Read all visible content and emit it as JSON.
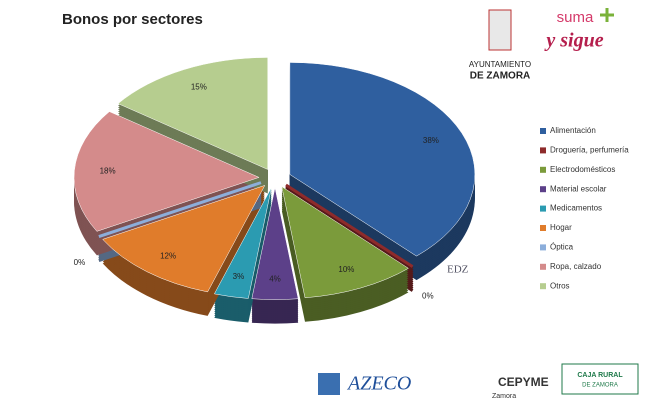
{
  "chart_data": {
    "type": "pie",
    "title": "Bonos por sectores",
    "categories": [
      "Alimentación",
      "Droguería, perfumería",
      "Electrodomésticos",
      "Material escolar",
      "Medicamentos",
      "Hogar",
      "Óptica",
      "Ropa, calzado",
      "Otros"
    ],
    "values": [
      38,
      0,
      10,
      4,
      3,
      12,
      0,
      18,
      15
    ],
    "value_labels": [
      "38%",
      "0%",
      "10%",
      "4%",
      "3%",
      "12%",
      "0%",
      "18%",
      "15%"
    ],
    "colors": [
      "#2f5f9f",
      "#8e2b2b",
      "#7b9b3b",
      "#5c4089",
      "#2b9bb1",
      "#e07c2b",
      "#8caedb",
      "#d48b8b",
      "#b6cd8f"
    ],
    "legend": "right"
  },
  "logos": {
    "council": [
      "AYUNTAMIENTO",
      "DE ZAMORA"
    ],
    "campaign": [
      "suma",
      "y sigue"
    ],
    "watermark": "EDZ",
    "sponsors": [
      "AZECO",
      "CEPYME",
      "Zamora",
      "CAJA RURAL",
      "DE ZAMORA"
    ]
  }
}
